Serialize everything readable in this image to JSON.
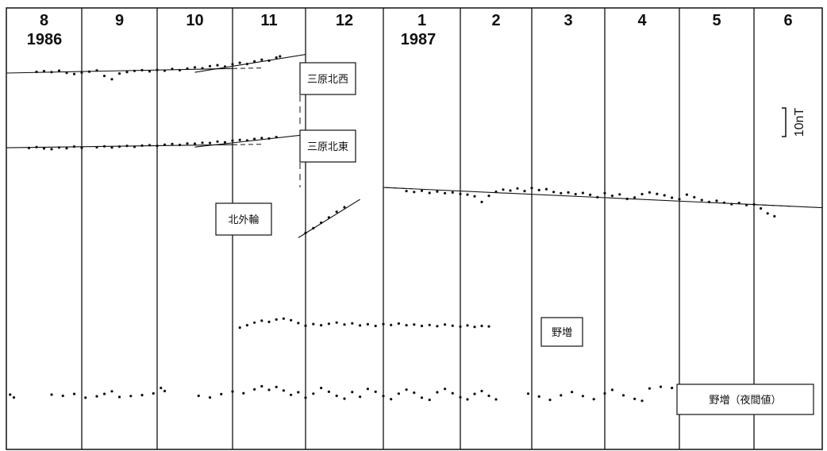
{
  "chart_data": {
    "type": "scatter",
    "title": "",
    "xlabel": "",
    "ylabel": "",
    "colors": {
      "ink": "#111111",
      "background": "#ffffff"
    },
    "time_axis": {
      "months": [
        {
          "month": "8",
          "year": "1986"
        },
        {
          "month": "9"
        },
        {
          "month": "10"
        },
        {
          "month": "11"
        },
        {
          "month": "12"
        },
        {
          "month": "1",
          "year": "1987"
        },
        {
          "month": "2"
        },
        {
          "month": "3"
        },
        {
          "month": "4"
        },
        {
          "month": "5"
        },
        {
          "month": "6"
        }
      ]
    },
    "scale_bar": {
      "label": "10nT",
      "value_nT": 10
    },
    "series": [
      {
        "name": "三原北西",
        "unit": "nT",
        "date_range": [
          "1986-08-20",
          "1986-11-20"
        ],
        "points": [
          [
            0.4,
            2.5
          ],
          [
            0.5,
            2.8
          ],
          [
            0.6,
            2.4
          ],
          [
            0.7,
            3.0
          ],
          [
            0.8,
            2.1
          ],
          [
            0.9,
            1.6
          ],
          [
            1.0,
            2.2
          ],
          [
            1.1,
            2.6
          ],
          [
            1.2,
            3.1
          ],
          [
            1.3,
            0.8
          ],
          [
            1.4,
            -0.6
          ],
          [
            1.5,
            1.8
          ],
          [
            1.6,
            2.4
          ],
          [
            1.7,
            2.9
          ],
          [
            1.8,
            3.2
          ],
          [
            1.9,
            2.7
          ],
          [
            2.0,
            3.3
          ],
          [
            2.1,
            3.0
          ],
          [
            2.2,
            3.7
          ],
          [
            2.3,
            3.2
          ],
          [
            2.4,
            3.9
          ],
          [
            2.5,
            4.4
          ],
          [
            2.6,
            4.0
          ],
          [
            2.7,
            4.9
          ],
          [
            2.8,
            5.3
          ],
          [
            2.9,
            4.7
          ],
          [
            3.0,
            5.7
          ],
          [
            3.1,
            6.3
          ],
          [
            3.2,
            5.8
          ],
          [
            3.3,
            6.9
          ],
          [
            3.4,
            7.6
          ],
          [
            3.5,
            7.2
          ],
          [
            3.6,
            8.5
          ],
          [
            3.65,
            9.0
          ]
        ],
        "trends": [
          {
            "x": [
              0.0,
              3.0
            ],
            "y": [
              2.0,
              3.9
            ]
          },
          {
            "x": [
              2.5,
              4.0
            ],
            "y": [
              2.3,
              9.8
            ]
          }
        ]
      },
      {
        "name": "三原北東",
        "unit": "nT",
        "date_range": [
          "1986-08-20",
          "1986-11-20"
        ],
        "points": [
          [
            0.3,
            1.2
          ],
          [
            0.4,
            1.6
          ],
          [
            0.5,
            1.0
          ],
          [
            0.6,
            0.7
          ],
          [
            0.7,
            1.4
          ],
          [
            0.8,
            1.1
          ],
          [
            0.9,
            1.8
          ],
          [
            1.0,
            1.3
          ],
          [
            1.2,
            1.5
          ],
          [
            1.3,
            1.9
          ],
          [
            1.4,
            1.4
          ],
          [
            1.5,
            1.8
          ],
          [
            1.6,
            2.1
          ],
          [
            1.7,
            1.7
          ],
          [
            1.8,
            2.2
          ],
          [
            1.9,
            2.4
          ],
          [
            2.0,
            2.1
          ],
          [
            2.1,
            2.6
          ],
          [
            2.2,
            2.9
          ],
          [
            2.3,
            2.5
          ],
          [
            2.4,
            3.1
          ],
          [
            2.5,
            3.0
          ],
          [
            2.6,
            3.4
          ],
          [
            2.7,
            3.3
          ],
          [
            2.8,
            3.9
          ],
          [
            2.9,
            3.6
          ],
          [
            3.0,
            4.3
          ],
          [
            3.1,
            4.6
          ],
          [
            3.2,
            4.4
          ],
          [
            3.3,
            5.0
          ],
          [
            3.4,
            5.4
          ],
          [
            3.5,
            5.2
          ],
          [
            3.6,
            5.8
          ]
        ],
        "trends": [
          {
            "x": [
              0.0,
              3.0
            ],
            "y": [
              1.3,
              2.6
            ]
          },
          {
            "x": [
              2.5,
              4.0
            ],
            "y": [
              1.6,
              6.8
            ]
          }
        ]
      },
      {
        "name": "北外輪",
        "unit": "nT",
        "date_range": [
          "1986-12-01",
          "1987-06-01"
        ],
        "points": [
          [
            4.0,
            -15.8
          ],
          [
            4.1,
            -13.8
          ],
          [
            4.2,
            -11.5
          ],
          [
            4.3,
            -9.3
          ],
          [
            4.4,
            -6.9
          ],
          [
            4.5,
            -5.0
          ],
          [
            5.3,
            1.8
          ],
          [
            5.4,
            1.4
          ],
          [
            5.5,
            1.9
          ],
          [
            5.6,
            1.0
          ],
          [
            5.7,
            1.6
          ],
          [
            5.8,
            0.9
          ],
          [
            5.9,
            1.2
          ],
          [
            6.0,
            0.6
          ],
          [
            6.1,
            0.3
          ],
          [
            6.2,
            -0.4
          ],
          [
            6.3,
            -2.8
          ],
          [
            6.4,
            -0.2
          ],
          [
            6.5,
            1.5
          ],
          [
            6.6,
            2.4
          ],
          [
            6.7,
            2.0
          ],
          [
            6.8,
            2.9
          ],
          [
            6.9,
            1.8
          ],
          [
            7.0,
            3.1
          ],
          [
            7.1,
            2.2
          ],
          [
            7.2,
            2.6
          ],
          [
            7.3,
            1.4
          ],
          [
            7.4,
            0.9
          ],
          [
            7.5,
            1.2
          ],
          [
            7.6,
            0.5
          ],
          [
            7.7,
            1.0
          ],
          [
            7.8,
            0.2
          ],
          [
            7.9,
            -0.8
          ],
          [
            8.0,
            0.9
          ],
          [
            8.1,
            -0.2
          ],
          [
            8.2,
            0.4
          ],
          [
            8.3,
            -1.5
          ],
          [
            8.4,
            -0.9
          ],
          [
            8.5,
            0.5
          ],
          [
            8.6,
            1.2
          ],
          [
            8.7,
            0.6
          ],
          [
            8.8,
            0.0
          ],
          [
            8.9,
            -1.0
          ],
          [
            9.0,
            -1.6
          ],
          [
            9.1,
            0.3
          ],
          [
            9.2,
            -0.8
          ],
          [
            9.3,
            -2.0
          ],
          [
            9.4,
            -2.8
          ],
          [
            9.5,
            -2.3
          ],
          [
            9.6,
            -3.1
          ],
          [
            9.7,
            -3.7
          ],
          [
            9.8,
            -3.2
          ],
          [
            9.9,
            -4.1
          ],
          [
            10.0,
            -3.8
          ],
          [
            10.1,
            -5.5
          ],
          [
            10.2,
            -7.6
          ],
          [
            10.3,
            -8.8
          ]
        ],
        "trends": [
          {
            "x": [
              3.9,
              4.7
            ],
            "y": [
              -17.8,
              -1.7
            ]
          },
          {
            "x": [
              5.0,
              11.0
            ],
            "y": [
              3.3,
              -5.2
            ]
          }
        ]
      },
      {
        "name": "野増",
        "unit": "nT",
        "date_range": [
          "1986-11-01",
          "1987-02-28"
        ],
        "points": [
          [
            3.1,
            -1.2
          ],
          [
            3.2,
            -0.2
          ],
          [
            3.3,
            0.9
          ],
          [
            3.4,
            1.7
          ],
          [
            3.5,
            1.2
          ],
          [
            3.6,
            2.2
          ],
          [
            3.7,
            2.6
          ],
          [
            3.8,
            1.9
          ],
          [
            3.9,
            0.7
          ],
          [
            4.0,
            -0.4
          ],
          [
            4.1,
            0.3
          ],
          [
            4.2,
            -0.2
          ],
          [
            4.3,
            0.4
          ],
          [
            4.4,
            0.9
          ],
          [
            4.5,
            0.1
          ],
          [
            4.6,
            0.6
          ],
          [
            4.7,
            -0.3
          ],
          [
            4.8,
            0.2
          ],
          [
            4.9,
            -0.5
          ],
          [
            5.0,
            0.3
          ],
          [
            5.1,
            -0.1
          ],
          [
            5.2,
            0.5
          ],
          [
            5.3,
            -0.2
          ],
          [
            5.4,
            0.1
          ],
          [
            5.5,
            -0.5
          ],
          [
            5.6,
            -0.1
          ],
          [
            5.7,
            -0.6
          ],
          [
            5.8,
            0.1
          ],
          [
            5.9,
            -0.4
          ],
          [
            6.0,
            -0.8
          ],
          [
            6.1,
            -0.3
          ],
          [
            6.2,
            -0.9
          ],
          [
            6.3,
            -0.5
          ],
          [
            6.4,
            -0.7
          ]
        ]
      },
      {
        "name": "野増（夜間値）",
        "unit": "nT",
        "date_range": [
          "1986-08-01",
          "1987-05-31"
        ],
        "points": [
          [
            0.05,
            0.0
          ],
          [
            0.1,
            -1.2
          ],
          [
            0.6,
            0.0
          ],
          [
            0.75,
            -0.5
          ],
          [
            0.9,
            0.3
          ],
          [
            1.05,
            -1.3
          ],
          [
            1.2,
            -0.7
          ],
          [
            1.3,
            0.3
          ],
          [
            1.4,
            1.4
          ],
          [
            1.5,
            -1.0
          ],
          [
            1.65,
            -0.6
          ],
          [
            1.8,
            -0.2
          ],
          [
            1.95,
            0.5
          ],
          [
            2.05,
            2.8
          ],
          [
            2.1,
            1.5
          ],
          [
            2.55,
            -0.5
          ],
          [
            2.7,
            -1.2
          ],
          [
            2.85,
            0.2
          ],
          [
            3.0,
            1.3
          ],
          [
            3.15,
            0.6
          ],
          [
            3.3,
            2.2
          ],
          [
            3.4,
            3.5
          ],
          [
            3.5,
            2.0
          ],
          [
            3.6,
            3.2
          ],
          [
            3.7,
            1.7
          ],
          [
            3.8,
            -0.1
          ],
          [
            3.9,
            1.0
          ],
          [
            4.0,
            -1.3
          ],
          [
            4.1,
            0.4
          ],
          [
            4.2,
            2.8
          ],
          [
            4.3,
            1.2
          ],
          [
            4.4,
            -0.5
          ],
          [
            4.5,
            -1.7
          ],
          [
            4.6,
            1.1
          ],
          [
            4.7,
            -0.9
          ],
          [
            4.8,
            2.4
          ],
          [
            4.9,
            1.2
          ],
          [
            5.0,
            -0.6
          ],
          [
            5.1,
            -1.9
          ],
          [
            5.2,
            0.4
          ],
          [
            5.3,
            2.1
          ],
          [
            5.4,
            0.8
          ],
          [
            5.5,
            -1.3
          ],
          [
            5.6,
            -2.2
          ],
          [
            5.7,
            1.0
          ],
          [
            5.8,
            2.4
          ],
          [
            5.9,
            0.6
          ],
          [
            6.0,
            -1.1
          ],
          [
            6.1,
            -2.0
          ],
          [
            6.2,
            0.3
          ],
          [
            6.3,
            1.5
          ],
          [
            6.4,
            -0.5
          ],
          [
            6.5,
            -2.0
          ],
          [
            6.95,
            0.4
          ],
          [
            7.1,
            -0.8
          ],
          [
            7.25,
            -2.2
          ],
          [
            7.4,
            -0.3
          ],
          [
            7.55,
            1.1
          ],
          [
            7.7,
            -0.6
          ],
          [
            7.85,
            -1.9
          ],
          [
            8.0,
            0.5
          ],
          [
            8.1,
            2.0
          ],
          [
            8.25,
            -0.3
          ],
          [
            8.4,
            -1.8
          ],
          [
            8.5,
            -2.6
          ],
          [
            8.6,
            2.6
          ],
          [
            8.75,
            3.3
          ],
          [
            8.9,
            2.8
          ]
        ]
      }
    ]
  }
}
